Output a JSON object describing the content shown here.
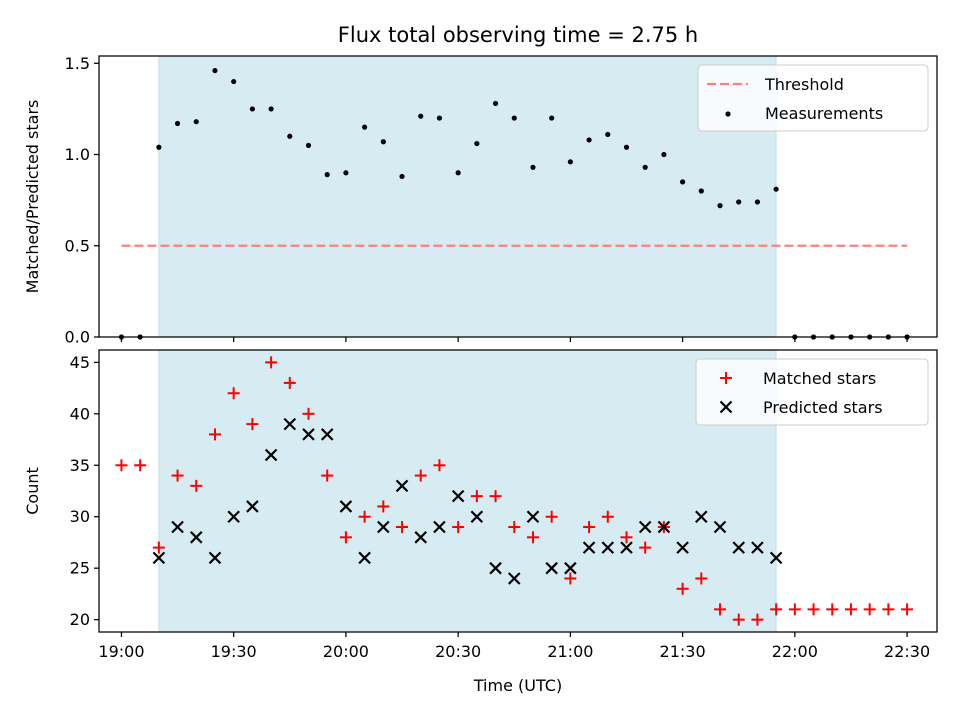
{
  "figure": {
    "title": "Flux total observing time = 2.75 h"
  },
  "colors": {
    "shade": "#add8e6",
    "threshold": "#ff7f7f",
    "matched": "#ff0000",
    "predicted": "#000000",
    "measurements": "#000000"
  },
  "chart_data": [
    {
      "type": "scatter",
      "ylabel": "Matched/Predicted stars",
      "xlim": [
        "18:54",
        "22:38"
      ],
      "ylim": [
        0,
        1.54
      ],
      "yticks": [
        "0.0",
        "0.5",
        "1.0",
        "1.5"
      ],
      "yticks_values": [
        0,
        0.5,
        1.0,
        1.5
      ],
      "xticks_values": [
        "19:00",
        "19:30",
        "20:00",
        "20:30",
        "21:00",
        "21:30",
        "22:00",
        "22:30"
      ],
      "shaded_region": [
        "19:10",
        "21:55"
      ],
      "legend": {
        "placement": "top-right",
        "entries": [
          "Threshold",
          "Measurements"
        ]
      },
      "threshold": {
        "name": "Threshold",
        "y": 0.5,
        "x": [
          "19:00",
          "22:30"
        ]
      },
      "series": [
        {
          "name": "Measurements",
          "x": [
            "19:00",
            "19:05",
            "19:10",
            "19:15",
            "19:20",
            "19:25",
            "19:30",
            "19:35",
            "19:40",
            "19:45",
            "19:50",
            "19:55",
            "20:00",
            "20:05",
            "20:10",
            "20:15",
            "20:20",
            "20:25",
            "20:30",
            "20:35",
            "20:40",
            "20:45",
            "20:50",
            "20:55",
            "21:00",
            "21:05",
            "21:10",
            "21:15",
            "21:20",
            "21:25",
            "21:30",
            "21:35",
            "21:40",
            "21:45",
            "21:50",
            "21:55",
            "22:00",
            "22:05",
            "22:10",
            "22:15",
            "22:20",
            "22:25",
            "22:30"
          ],
          "values": [
            0,
            0,
            1.04,
            1.17,
            1.18,
            1.46,
            1.4,
            1.25,
            1.25,
            1.1,
            1.05,
            0.89,
            0.9,
            1.15,
            1.07,
            0.88,
            1.21,
            1.2,
            0.9,
            1.06,
            1.28,
            1.2,
            0.93,
            1.2,
            0.96,
            1.08,
            1.11,
            1.04,
            0.93,
            1.0,
            0.85,
            0.8,
            0.72,
            0.74,
            0.74,
            0.81,
            0,
            0,
            0,
            0,
            0,
            0,
            0
          ]
        }
      ]
    },
    {
      "type": "scatter",
      "xlabel": "Time (UTC)",
      "ylabel": "Count",
      "xlim": [
        "18:54",
        "22:38"
      ],
      "ylim": [
        18.8,
        46.2
      ],
      "yticks": [
        "20",
        "25",
        "30",
        "35",
        "40",
        "45"
      ],
      "yticks_values": [
        20,
        25,
        30,
        35,
        40,
        45
      ],
      "xticks": [
        "19:00",
        "19:30",
        "20:00",
        "20:30",
        "21:00",
        "21:30",
        "22:00",
        "22:30"
      ],
      "shaded_region": [
        "19:10",
        "21:55"
      ],
      "legend": {
        "placement": "top-right",
        "entries": [
          "Matched stars",
          "Predicted stars"
        ]
      },
      "series": [
        {
          "name": "Matched stars",
          "marker": "plus",
          "x": [
            "19:00",
            "19:05",
            "19:10",
            "19:15",
            "19:20",
            "19:25",
            "19:30",
            "19:35",
            "19:40",
            "19:45",
            "19:50",
            "19:55",
            "20:00",
            "20:05",
            "20:10",
            "20:15",
            "20:20",
            "20:25",
            "20:30",
            "20:35",
            "20:40",
            "20:45",
            "20:50",
            "20:55",
            "21:00",
            "21:05",
            "21:10",
            "21:15",
            "21:20",
            "21:25",
            "21:30",
            "21:35",
            "21:40",
            "21:45",
            "21:50",
            "21:55",
            "22:00",
            "22:05",
            "22:10",
            "22:15",
            "22:20",
            "22:25",
            "22:30"
          ],
          "values": [
            35,
            35,
            27,
            34,
            33,
            38,
            42,
            39,
            45,
            43,
            40,
            34,
            28,
            30,
            31,
            29,
            34,
            35,
            29,
            32,
            32,
            29,
            28,
            30,
            24,
            29,
            30,
            28,
            27,
            29,
            23,
            24,
            21,
            20,
            20,
            21,
            21,
            21,
            21,
            21,
            21,
            21,
            21
          ]
        },
        {
          "name": "Predicted stars",
          "marker": "x",
          "x": [
            "19:10",
            "19:15",
            "19:20",
            "19:25",
            "19:30",
            "19:35",
            "19:40",
            "19:45",
            "19:50",
            "19:55",
            "20:00",
            "20:05",
            "20:10",
            "20:15",
            "20:20",
            "20:25",
            "20:30",
            "20:35",
            "20:40",
            "20:45",
            "20:50",
            "20:55",
            "21:00",
            "21:05",
            "21:10",
            "21:15",
            "21:20",
            "21:25",
            "21:30",
            "21:35",
            "21:40",
            "21:45",
            "21:50",
            "21:55"
          ],
          "values": [
            26,
            29,
            28,
            26,
            30,
            31,
            36,
            39,
            38,
            38,
            31,
            26,
            29,
            33,
            28,
            29,
            32,
            30,
            25,
            24,
            30,
            25,
            25,
            27,
            27,
            27,
            29,
            29,
            27,
            30,
            29,
            27,
            27,
            26
          ]
        }
      ]
    }
  ]
}
